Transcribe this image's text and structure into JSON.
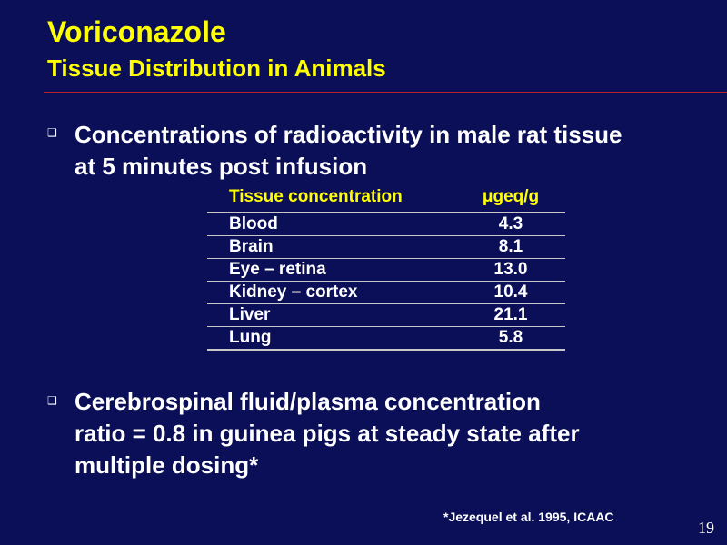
{
  "slide": {
    "title": "Voriconazole",
    "subtitle": "Tissue Distribution in Animals",
    "bullet_symbol": "❑",
    "bullets": [
      {
        "lines": [
          "Concentrations of radioactivity in male rat tissue",
          "at 5 minutes post infusion"
        ]
      },
      {
        "lines": [
          "Cerebrospinal fluid/plasma concentration",
          "ratio = 0.8 in guinea pigs at steady state after",
          "multiple dosing*"
        ]
      }
    ],
    "table": {
      "headers": [
        "Tissue concentration",
        "μgeq/g"
      ],
      "rows": [
        [
          "Blood",
          "4.3"
        ],
        [
          "Brain",
          "8.1"
        ],
        [
          "Eye – retina",
          "13.0"
        ],
        [
          "Kidney – cortex",
          "10.4"
        ],
        [
          "Liver",
          "21.1"
        ],
        [
          "Lung",
          "5.8"
        ]
      ]
    },
    "footnote": "*Jezequel et al. 1995, ICAAC",
    "page_number": "19"
  },
  "colors": {
    "background": "#0a0f57",
    "title": "#ffff00",
    "divider": "#b8222a",
    "text": "#ffffff"
  }
}
